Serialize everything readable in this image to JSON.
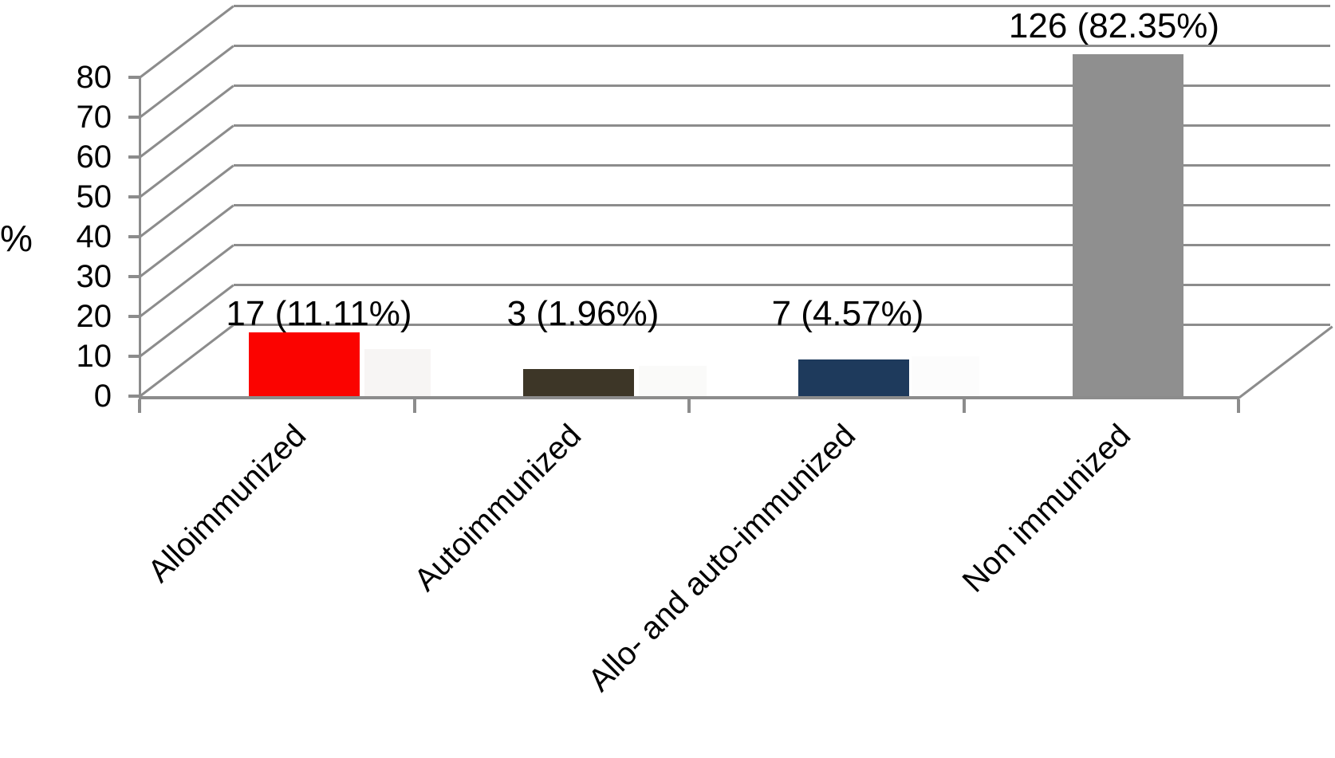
{
  "chart_data": {
    "type": "bar",
    "style": "3d-perspective-walls",
    "title": "",
    "xlabel": "",
    "ylabel": "%",
    "categories": [
      "Alloimmunized",
      "Autoimmunized",
      "Allo- and auto-immunized",
      "Non immunized"
    ],
    "counts": [
      17,
      3,
      7,
      126
    ],
    "values_percent": [
      11.11,
      1.96,
      4.57,
      82.35
    ],
    "bar_labels": [
      "17 (11.11%)",
      "3 (1.96%)",
      "7 (4.57%)",
      "126 (82.35%)"
    ],
    "bar_colors": [
      "#fb0300",
      "#3d3627",
      "#1e3a5c",
      "#8f8f8f"
    ],
    "yticks": [
      0,
      10,
      20,
      30,
      40,
      50,
      60,
      70,
      80
    ],
    "ytick_labels": [
      "0",
      "10",
      "20",
      "30",
      "40",
      "50",
      "60",
      "70",
      "80"
    ],
    "ylim": [
      0,
      90
    ],
    "grid": true,
    "legend": false,
    "axis_color": "#8c8c8c",
    "text_color": "#000000",
    "background_color": "#ffffff"
  }
}
